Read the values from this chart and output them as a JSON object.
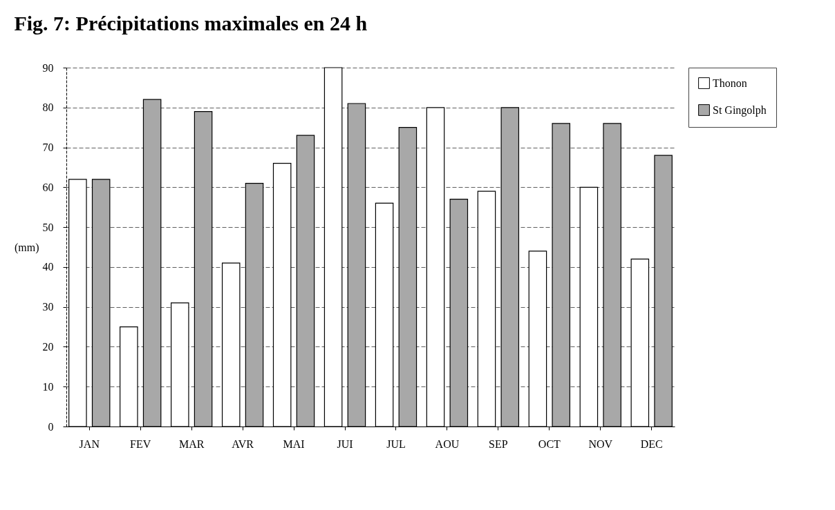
{
  "chart_data": {
    "type": "bar",
    "title": "Fig. 7: Précipitations maximales en 24 h",
    "ylabel": "(mm)",
    "categories": [
      "JAN",
      "FEV",
      "MAR",
      "AVR",
      "MAI",
      "JUI",
      "JUL",
      "AOU",
      "SEP",
      "OCT",
      "NOV",
      "DEC"
    ],
    "series": [
      {
        "name": "Thonon",
        "color": "#ffffff",
        "values": [
          62,
          25,
          31,
          41,
          66,
          90,
          56,
          80,
          59,
          44,
          60,
          42
        ]
      },
      {
        "name": "St Gingolph",
        "color": "#a8a8a8",
        "values": [
          62,
          82,
          79,
          61,
          73,
          81,
          75,
          57,
          80,
          76,
          76,
          68
        ]
      }
    ],
    "ylim": [
      0,
      90
    ],
    "yticks": [
      0,
      10,
      20,
      30,
      40,
      50,
      60,
      70,
      80,
      90
    ],
    "grid": "y",
    "legend": "right"
  }
}
